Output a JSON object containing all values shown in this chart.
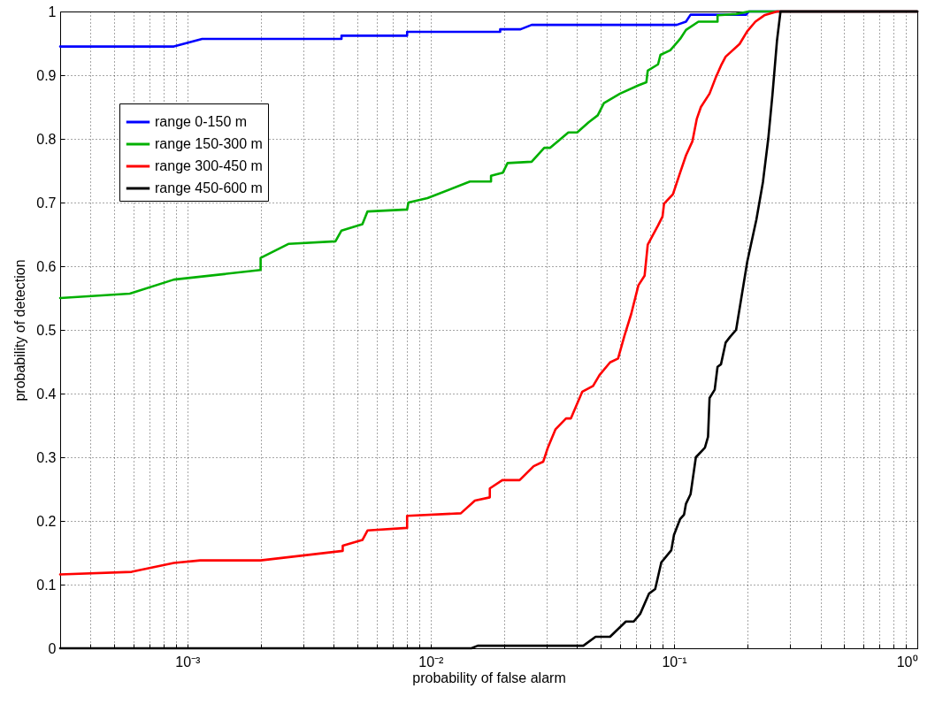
{
  "chart_data": {
    "type": "line",
    "xlabel": "probability of false alarm",
    "ylabel": "probability of detection",
    "log": "x",
    "grid": true,
    "legend": "top left",
    "line_style": "solid",
    "xlim": [
      0.0003,
      1
    ],
    "ylim": [
      0,
      1
    ],
    "xticks": [
      {
        "value": 0.0004,
        "label": null
      },
      {
        "value": 0.0005,
        "label": null
      },
      {
        "value": 0.0006,
        "label": null
      },
      {
        "value": 0.0007,
        "label": null
      },
      {
        "value": 0.0008,
        "label": null
      },
      {
        "value": 0.0009,
        "label": null
      },
      {
        "value": 0.001,
        "label": "10⁻³"
      },
      {
        "value": 0.002,
        "label": null
      },
      {
        "value": 0.003,
        "label": null
      },
      {
        "value": 0.004,
        "label": null
      },
      {
        "value": 0.005,
        "label": null
      },
      {
        "value": 0.006,
        "label": null
      },
      {
        "value": 0.007,
        "label": null
      },
      {
        "value": 0.008,
        "label": null
      },
      {
        "value": 0.009,
        "label": null
      },
      {
        "value": 0.01,
        "label": "10⁻²"
      },
      {
        "value": 0.02,
        "label": null
      },
      {
        "value": 0.03,
        "label": null
      },
      {
        "value": 0.04,
        "label": null
      },
      {
        "value": 0.05,
        "label": null
      },
      {
        "value": 0.06,
        "label": null
      },
      {
        "value": 0.07,
        "label": null
      },
      {
        "value": 0.08,
        "label": null
      },
      {
        "value": 0.09,
        "label": null
      },
      {
        "value": 0.1,
        "label": "10⁻¹"
      },
      {
        "value": 0.2,
        "label": null
      },
      {
        "value": 0.3,
        "label": null
      },
      {
        "value": 0.4,
        "label": null
      },
      {
        "value": 0.5,
        "label": null
      },
      {
        "value": 0.6,
        "label": null
      },
      {
        "value": 0.7,
        "label": null
      },
      {
        "value": 0.8,
        "label": null
      },
      {
        "value": 0.9,
        "label": null
      },
      {
        "value": 1,
        "label": "10⁰"
      }
    ],
    "yticks": [
      0,
      0.1,
      0.2,
      0.3,
      0.4,
      0.5,
      0.6,
      0.7,
      0.8,
      0.9,
      1
    ],
    "series": [
      {
        "name": "range 0-150 m",
        "color": "#0000ff",
        "x": [
          0.0003,
          0.00088,
          0.00115,
          0.0043,
          0.0043,
          0.008,
          0.008,
          0.0193,
          0.0193,
          0.0234,
          0.026,
          0.1026,
          0.112,
          0.117,
          0.198,
          0.203,
          1
        ],
        "values": [
          0.945,
          0.945,
          0.957,
          0.957,
          0.962,
          0.962,
          0.968,
          0.968,
          0.972,
          0.972,
          0.979,
          0.979,
          0.984,
          0.995,
          0.995,
          1,
          1
        ]
      },
      {
        "name": "range 150-300 m",
        "color": "#00b000",
        "x": [
          0.0003,
          0.00058,
          0.00088,
          0.002,
          0.002,
          0.0026,
          0.00406,
          0.0043,
          0.00524,
          0.0055,
          0.008,
          0.0081,
          0.0097,
          0.0145,
          0.0177,
          0.0177,
          0.0198,
          0.0207,
          0.026,
          0.0293,
          0.031,
          0.034,
          0.0368,
          0.04,
          0.0446,
          0.0486,
          0.0515,
          0.06,
          0.0714,
          0.077,
          0.078,
          0.086,
          0.088,
          0.0965,
          0.106,
          0.112,
          0.126,
          0.151,
          0.151,
          0.18,
          0.203,
          1
        ],
        "values": [
          0.55,
          0.557,
          0.579,
          0.594,
          0.613,
          0.635,
          0.639,
          0.656,
          0.666,
          0.686,
          0.689,
          0.7,
          0.707,
          0.733,
          0.733,
          0.742,
          0.747,
          0.762,
          0.764,
          0.786,
          0.786,
          0.799,
          0.81,
          0.81,
          0.826,
          0.837,
          0.856,
          0.871,
          0.884,
          0.889,
          0.907,
          0.917,
          0.932,
          0.939,
          0.957,
          0.971,
          0.984,
          0.984,
          0.994,
          0.996,
          1,
          1
        ]
      },
      {
        "name": "range 300-450 m",
        "color": "#ff0000",
        "x": [
          0.0003,
          0.00059,
          0.00088,
          0.00113,
          0.002,
          0.00435,
          0.00435,
          0.00524,
          0.0055,
          0.008,
          0.008,
          0.0133,
          0.0152,
          0.0175,
          0.0175,
          0.0197,
          0.0232,
          0.0265,
          0.029,
          0.0303,
          0.0326,
          0.036,
          0.0377,
          0.042,
          0.0465,
          0.0494,
          0.0546,
          0.0589,
          0.0625,
          0.0667,
          0.0714,
          0.0757,
          0.078,
          0.086,
          0.0897,
          0.091,
          0.099,
          0.106,
          0.112,
          0.119,
          0.124,
          0.129,
          0.14,
          0.148,
          0.156,
          0.163,
          0.186,
          0.2,
          0.216,
          0.235,
          0.265,
          1
        ],
        "values": [
          0.116,
          0.12,
          0.134,
          0.138,
          0.138,
          0.153,
          0.161,
          0.17,
          0.185,
          0.189,
          0.208,
          0.212,
          0.232,
          0.237,
          0.251,
          0.264,
          0.264,
          0.286,
          0.293,
          0.315,
          0.344,
          0.361,
          0.361,
          0.403,
          0.412,
          0.429,
          0.449,
          0.455,
          0.49,
          0.525,
          0.57,
          0.585,
          0.634,
          0.664,
          0.678,
          0.698,
          0.713,
          0.747,
          0.774,
          0.796,
          0.831,
          0.85,
          0.871,
          0.895,
          0.915,
          0.929,
          0.949,
          0.969,
          0.984,
          0.994,
          1,
          1
        ]
      },
      {
        "name": "range 450-600 m",
        "color": "#000000",
        "x": [
          0.0003,
          0.0147,
          0.0156,
          0.0424,
          0.0476,
          0.0546,
          0.0634,
          0.0683,
          0.0726,
          0.079,
          0.0837,
          0.0887,
          0.0975,
          0.1,
          0.106,
          0.11,
          0.112,
          0.117,
          0.123,
          0.134,
          0.138,
          0.14,
          0.147,
          0.151,
          0.156,
          0.163,
          0.17,
          0.18,
          0.2,
          0.218,
          0.232,
          0.244,
          0.254,
          0.265,
          0.274,
          1
        ],
        "values": [
          0,
          0,
          0.004,
          0.004,
          0.018,
          0.018,
          0.042,
          0.042,
          0.054,
          0.086,
          0.093,
          0.135,
          0.154,
          0.178,
          0.203,
          0.21,
          0.227,
          0.242,
          0.3,
          0.315,
          0.332,
          0.393,
          0.406,
          0.442,
          0.446,
          0.48,
          0.489,
          0.5,
          0.607,
          0.673,
          0.732,
          0.8,
          0.87,
          0.954,
          1,
          1
        ]
      }
    ]
  }
}
